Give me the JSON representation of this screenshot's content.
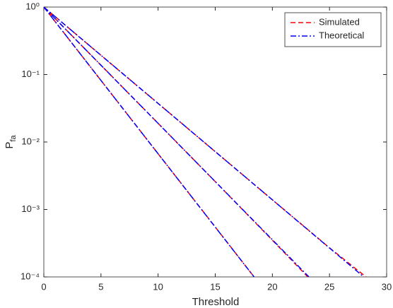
{
  "chart_data": {
    "type": "line",
    "xlabel": "Threshold",
    "ylabel": "P",
    "ylabel_sub": "fa",
    "log_y": true,
    "legend": "upper right",
    "xlim": [
      0,
      30
    ],
    "xticks": [
      0,
      5,
      10,
      15,
      20,
      25,
      30
    ],
    "ylim": [
      0.0001,
      1
    ],
    "yticks": [
      {
        "value": 0.0001,
        "label": "10⁻⁴"
      },
      {
        "value": 0.001,
        "label": "10⁻³"
      },
      {
        "value": 0.01,
        "label": "10⁻²"
      },
      {
        "value": 0.1,
        "label": "10⁻¹"
      },
      {
        "value": 1,
        "label": "10⁰"
      }
    ],
    "series": [
      {
        "name": "Simulated",
        "color": "#ff0000",
        "dash": "dashed",
        "x": [
          0,
          5,
          10,
          15,
          18.4
        ],
        "values": [
          1,
          0.0818,
          0.0067,
          0.00055,
          0.0001
        ]
      },
      {
        "name": "Theoretical",
        "color": "#0000ff",
        "dash": "dashdot",
        "x": [
          0,
          5,
          10,
          15,
          18.4
        ],
        "values": [
          1,
          0.0818,
          0.0067,
          0.000548,
          0.0001
        ]
      },
      {
        "name": "Simulated",
        "color": "#ff0000",
        "dash": "dashed",
        "x": [
          0,
          5,
          10,
          15,
          20,
          23.1
        ],
        "values": [
          1,
          0.1374,
          0.0189,
          0.00259,
          0.00035,
          0.0001
        ]
      },
      {
        "name": "Theoretical",
        "color": "#0000ff",
        "dash": "dashdot",
        "x": [
          0,
          5,
          10,
          15,
          20,
          23.2
        ],
        "values": [
          1,
          0.1374,
          0.0189,
          0.00259,
          0.000356,
          0.0001
        ]
      },
      {
        "name": "Simulated",
        "color": "#ff0000",
        "dash": "dashed",
        "x": [
          0,
          5,
          10,
          15,
          20,
          25,
          28.2
        ],
        "values": [
          1,
          0.193,
          0.0373,
          0.0072,
          0.00139,
          0.00027,
          0.0001
        ]
      },
      {
        "name": "Theoretical",
        "color": "#0000ff",
        "dash": "dashdot",
        "x": [
          0,
          5,
          10,
          15,
          20,
          25,
          28
        ],
        "values": [
          1,
          0.193,
          0.0373,
          0.0072,
          0.00139,
          0.000268,
          0.0001
        ]
      }
    ]
  }
}
